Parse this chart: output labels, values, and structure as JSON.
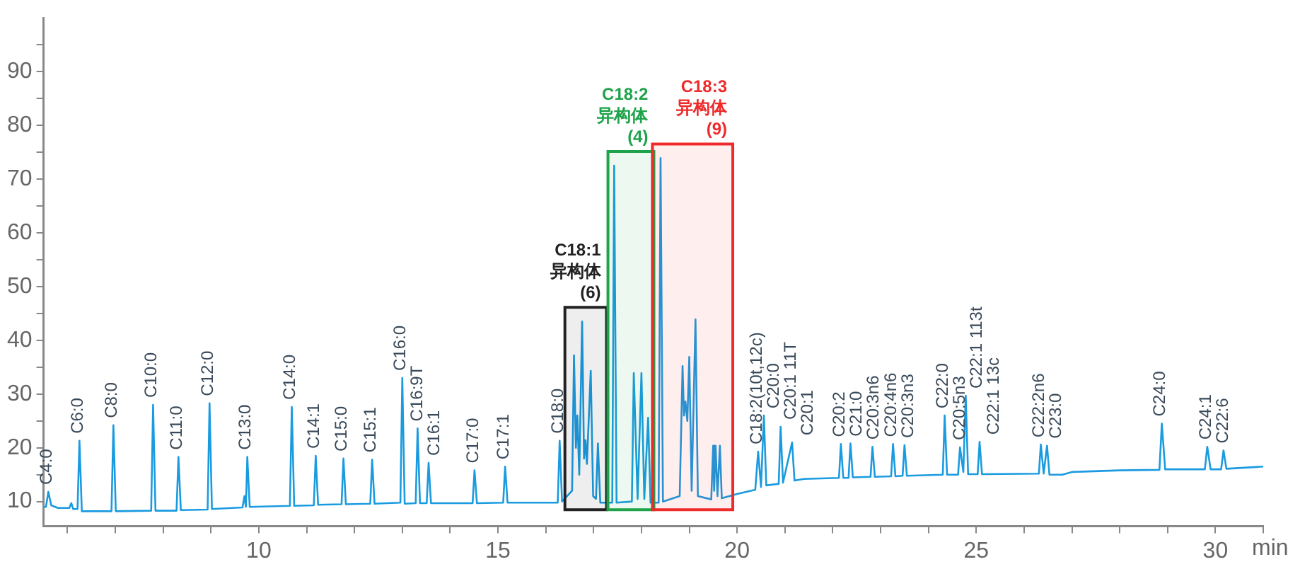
{
  "chart_data": {
    "type": "line",
    "xlabel": "min",
    "xlim": [
      5.5,
      31
    ],
    "ylim": [
      5.4,
      100
    ],
    "xticks": [
      {
        "value": 6,
        "label": null
      },
      {
        "value": 7,
        "label": null
      },
      {
        "value": 8,
        "label": null
      },
      {
        "value": 9,
        "label": null
      },
      10,
      {
        "value": 11,
        "label": null
      },
      {
        "value": 12,
        "label": null
      },
      {
        "value": 13,
        "label": null
      },
      {
        "value": 14,
        "label": null
      },
      15,
      {
        "value": 16,
        "label": null
      },
      {
        "value": 17,
        "label": null
      },
      {
        "value": 18,
        "label": null
      },
      {
        "value": 19,
        "label": null
      },
      20,
      {
        "value": 21,
        "label": null
      },
      {
        "value": 22,
        "label": null
      },
      {
        "value": 23,
        "label": null
      },
      {
        "value": 24,
        "label": null
      },
      25,
      {
        "value": 26,
        "label": null
      },
      {
        "value": 27,
        "label": null
      },
      {
        "value": 28,
        "label": null
      },
      {
        "value": 29,
        "label": null
      },
      30,
      {
        "value": 31,
        "label": null
      }
    ],
    "yticks": [
      10,
      {
        "value": 15,
        "label": null
      },
      20,
      {
        "value": 25,
        "label": null
      },
      30,
      {
        "value": 35,
        "label": null
      },
      40,
      {
        "value": 45,
        "label": null
      },
      50,
      {
        "value": 55,
        "label": null
      },
      60,
      {
        "value": 65,
        "label": null
      },
      70,
      {
        "value": 75,
        "label": null
      },
      80,
      {
        "value": 85,
        "label": null
      },
      90,
      {
        "value": 95,
        "label": null
      }
    ],
    "grid": false,
    "legend": false,
    "marker": "none",
    "line_style": "solid",
    "series": [
      {
        "color": "#1a9be0",
        "x": [
          5.5,
          5.55,
          5.6,
          5.66,
          5.8,
          6.04,
          6.08,
          6.12,
          6.21,
          6.25,
          6.3,
          6.92,
          6.96,
          7.01,
          7.75,
          7.79,
          7.84,
          8.28,
          8.32,
          8.37,
          8.93,
          8.97,
          9.02,
          9.66,
          9.7,
          9.73,
          9.76,
          9.81,
          10.65,
          10.69,
          10.74,
          11.15,
          11.19,
          11.24,
          11.73,
          11.77,
          11.82,
          12.33,
          12.37,
          12.42,
          12.96,
          13.0,
          13.05,
          13.28,
          13.32,
          13.37,
          13.51,
          13.55,
          13.6,
          14.47,
          14.51,
          14.56,
          15.11,
          15.15,
          15.2,
          16.25,
          16.29,
          16.34,
          16.55,
          16.59,
          16.63,
          16.66,
          16.7,
          16.76,
          16.8,
          16.83,
          16.86,
          16.94,
          16.99,
          17.05,
          17.09,
          17.14,
          17.39,
          17.43,
          17.48,
          17.8,
          17.84,
          17.92,
          18.0,
          18.06,
          18.14,
          18.19,
          18.36,
          18.4,
          18.45,
          18.8,
          18.86,
          18.89,
          18.92,
          18.96,
          19.0,
          19.05,
          19.13,
          19.18,
          19.46,
          19.5,
          19.52,
          19.55,
          19.59,
          19.64,
          19.68,
          20.0,
          20.38,
          20.44,
          20.5,
          20.56,
          20.61,
          20.87,
          20.91,
          20.96,
          21.15,
          21.2,
          21.4,
          22.13,
          22.17,
          22.22,
          22.33,
          22.37,
          22.42,
          22.79,
          22.83,
          22.88,
          23.22,
          23.26,
          23.31,
          23.46,
          23.5,
          23.55,
          24.3,
          24.34,
          24.39,
          24.62,
          24.66,
          24.73,
          24.78,
          24.83,
          25.03,
          25.07,
          25.12,
          26.31,
          26.35,
          26.41,
          26.48,
          26.53,
          26.8,
          27.0,
          28.0,
          28.83,
          28.88,
          28.95,
          29.78,
          29.83,
          29.9,
          30.12,
          30.17,
          30.23,
          31.0
        ],
        "values": [
          9.0,
          9.0,
          11.8,
          9.3,
          8.8,
          8.8,
          9.7,
          8.6,
          8.6,
          21.3,
          8.2,
          8.2,
          24.2,
          8.2,
          8.3,
          28.0,
          8.3,
          8.3,
          18.3,
          8.4,
          8.5,
          28.3,
          8.6,
          8.9,
          11.0,
          9.0,
          18.3,
          9.0,
          9.2,
          27.6,
          9.2,
          9.3,
          18.5,
          9.4,
          9.5,
          18.0,
          9.5,
          9.6,
          17.8,
          9.6,
          9.8,
          33.0,
          9.6,
          9.7,
          23.6,
          9.7,
          9.7,
          17.2,
          9.7,
          9.7,
          15.8,
          9.7,
          9.8,
          16.5,
          9.8,
          9.8,
          21.3,
          10.0,
          12.0,
          37.2,
          20.0,
          26.0,
          15.0,
          43.5,
          18.0,
          21.4,
          17.0,
          34.3,
          11.0,
          10.5,
          20.8,
          9.8,
          9.8,
          72.5,
          9.8,
          10.0,
          33.9,
          10.5,
          33.9,
          10.5,
          25.6,
          9.8,
          9.8,
          73.9,
          10.0,
          11.0,
          35.2,
          26.0,
          28.6,
          25.0,
          36.9,
          12.0,
          43.9,
          11.0,
          10.4,
          20.4,
          12.0,
          20.4,
          11.0,
          20.4,
          10.6,
          11.4,
          12.2,
          19.3,
          12.7,
          26.0,
          13.0,
          13.3,
          23.9,
          13.5,
          21.0,
          13.9,
          14.2,
          14.4,
          20.7,
          14.4,
          14.4,
          20.8,
          14.5,
          14.6,
          20.2,
          14.6,
          14.7,
          20.7,
          14.7,
          14.8,
          20.5,
          14.8,
          15.0,
          26.0,
          15.0,
          15.0,
          20.1,
          15.5,
          29.7,
          15.1,
          15.1,
          21.1,
          15.1,
          15.2,
          20.6,
          15.2,
          20.4,
          15.0,
          15.0,
          15.5,
          15.8,
          15.9,
          24.5,
          16.0,
          16.0,
          20.2,
          16.0,
          16.0,
          19.5,
          16.1,
          16.5
        ]
      }
    ],
    "bands": [
      {
        "axis": "x",
        "from": 16.4,
        "to": 17.27,
        "label": "C18:1\n异构体\n(6)",
        "color": "#222222"
      },
      {
        "axis": "x",
        "from": 17.3,
        "to": 18.26,
        "label": "C18:2\n异构体\n(4)",
        "color": "#1fa34a"
      },
      {
        "axis": "x",
        "from": 18.23,
        "to": 19.91,
        "label": "C18:3\n异构体\n(9)",
        "color": "#ee2a2a"
      }
    ],
    "annotations": [
      {
        "text": "C4:0",
        "x": 5.6,
        "y": 11.8
      },
      {
        "text": "C6:0",
        "x": 6.25,
        "y": 21.3
      },
      {
        "text": "C8:0",
        "x": 6.96,
        "y": 24.2
      },
      {
        "text": "C10:0",
        "x": 7.79,
        "y": 28.0
      },
      {
        "text": "C11:0",
        "x": 8.32,
        "y": 18.3
      },
      {
        "text": "C12:0",
        "x": 8.97,
        "y": 28.3
      },
      {
        "text": "C13:0",
        "x": 9.76,
        "y": 18.3
      },
      {
        "text": "C14:0",
        "x": 10.69,
        "y": 27.6
      },
      {
        "text": "C14:1",
        "x": 11.19,
        "y": 18.5
      },
      {
        "text": "C15:0",
        "x": 11.77,
        "y": 18.0
      },
      {
        "text": "C15:1",
        "x": 12.37,
        "y": 17.8
      },
      {
        "text": "C16:0",
        "x": 13.0,
        "y": 33.0
      },
      {
        "text": "C16:9T",
        "x": 13.32,
        "y": 23.6
      },
      {
        "text": "C16:1",
        "x": 13.55,
        "y": 17.2
      },
      {
        "text": "C17:0",
        "x": 14.51,
        "y": 15.8
      },
      {
        "text": "C17:1",
        "x": 15.15,
        "y": 16.5
      },
      {
        "text": "C18:0",
        "x": 16.29,
        "y": 21.3
      },
      {
        "text": "C18:2(10t,12c)",
        "x": 20.44,
        "y": 19.3
      },
      {
        "text": "C20:0",
        "x": 20.56,
        "y": 26.0
      },
      {
        "text": "C20:1 11T",
        "x": 20.91,
        "y": 23.9
      },
      {
        "text": "C20:1",
        "x": 21.15,
        "y": 21.0
      },
      {
        "text": "C20:2",
        "x": 22.17,
        "y": 20.7
      },
      {
        "text": "C21:0",
        "x": 22.37,
        "y": 20.8
      },
      {
        "text": "C20:3n6",
        "x": 22.83,
        "y": 20.2
      },
      {
        "text": "C20:4n6",
        "x": 23.26,
        "y": 20.7
      },
      {
        "text": "C20:3n3",
        "x": 23.5,
        "y": 20.5
      },
      {
        "text": "C22:0",
        "x": 24.34,
        "y": 26.0
      },
      {
        "text": "C20:5n3",
        "x": 24.66,
        "y": 20.1
      },
      {
        "text": "C22:1 113t",
        "x": 24.78,
        "y": 29.7
      },
      {
        "text": "C22:1 13c",
        "x": 25.07,
        "y": 21.1
      },
      {
        "text": "C22:2n6",
        "x": 26.35,
        "y": 20.6
      },
      {
        "text": "C23:0",
        "x": 26.48,
        "y": 20.4
      },
      {
        "text": "C24:0",
        "x": 28.88,
        "y": 24.5
      },
      {
        "text": "C24:1",
        "x": 29.83,
        "y": 20.2
      },
      {
        "text": "C22:6",
        "x": 30.17,
        "y": 19.5
      }
    ]
  }
}
